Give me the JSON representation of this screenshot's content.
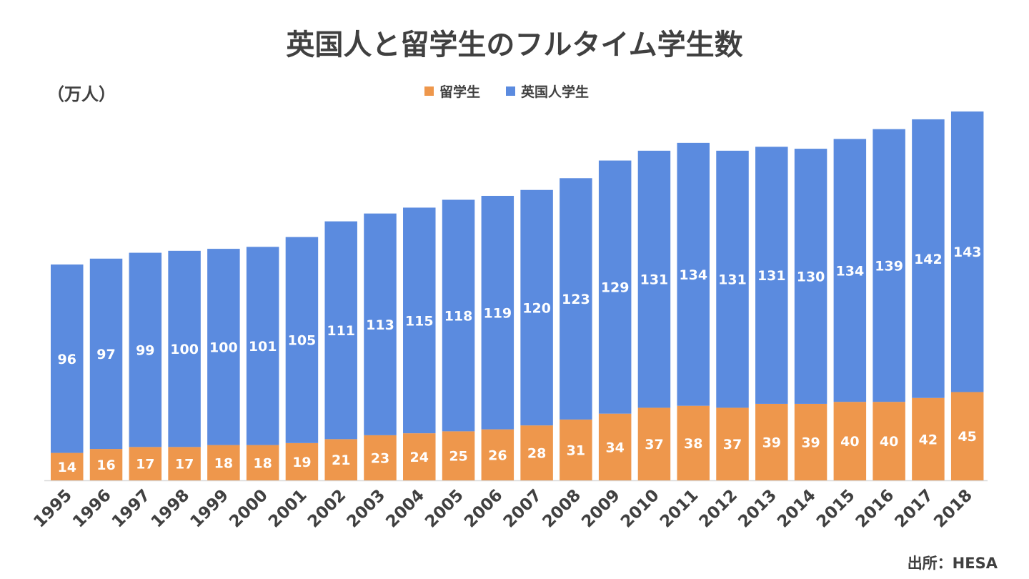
{
  "chart_data": {
    "type": "bar",
    "stacked": true,
    "title": "英国人と留学生のフルタイム学生数",
    "unit_label": "（万人）",
    "source": "出所：HESA",
    "categories": [
      "1995",
      "1996",
      "1997",
      "1998",
      "1999",
      "2000",
      "2001",
      "2002",
      "2003",
      "2004",
      "2005",
      "2006",
      "2007",
      "2008",
      "2009",
      "2010",
      "2011",
      "2012",
      "2013",
      "2014",
      "2015",
      "2016",
      "2017",
      "2018"
    ],
    "series": [
      {
        "name": "留学生",
        "color": "#EE974C",
        "values": [
          14,
          16,
          17,
          17,
          18,
          18,
          19,
          21,
          23,
          24,
          25,
          26,
          28,
          31,
          34,
          37,
          38,
          37,
          39,
          39,
          40,
          40,
          42,
          45
        ]
      },
      {
        "name": "英国人学生",
        "color": "#5B8BDF",
        "values": [
          96,
          97,
          99,
          100,
          100,
          101,
          105,
          111,
          113,
          115,
          118,
          119,
          120,
          123,
          129,
          131,
          134,
          131,
          131,
          130,
          134,
          139,
          142,
          143
        ]
      }
    ],
    "ylim": [
      0,
      190
    ],
    "grid": false,
    "legend": "top-center",
    "data_labels": true
  }
}
